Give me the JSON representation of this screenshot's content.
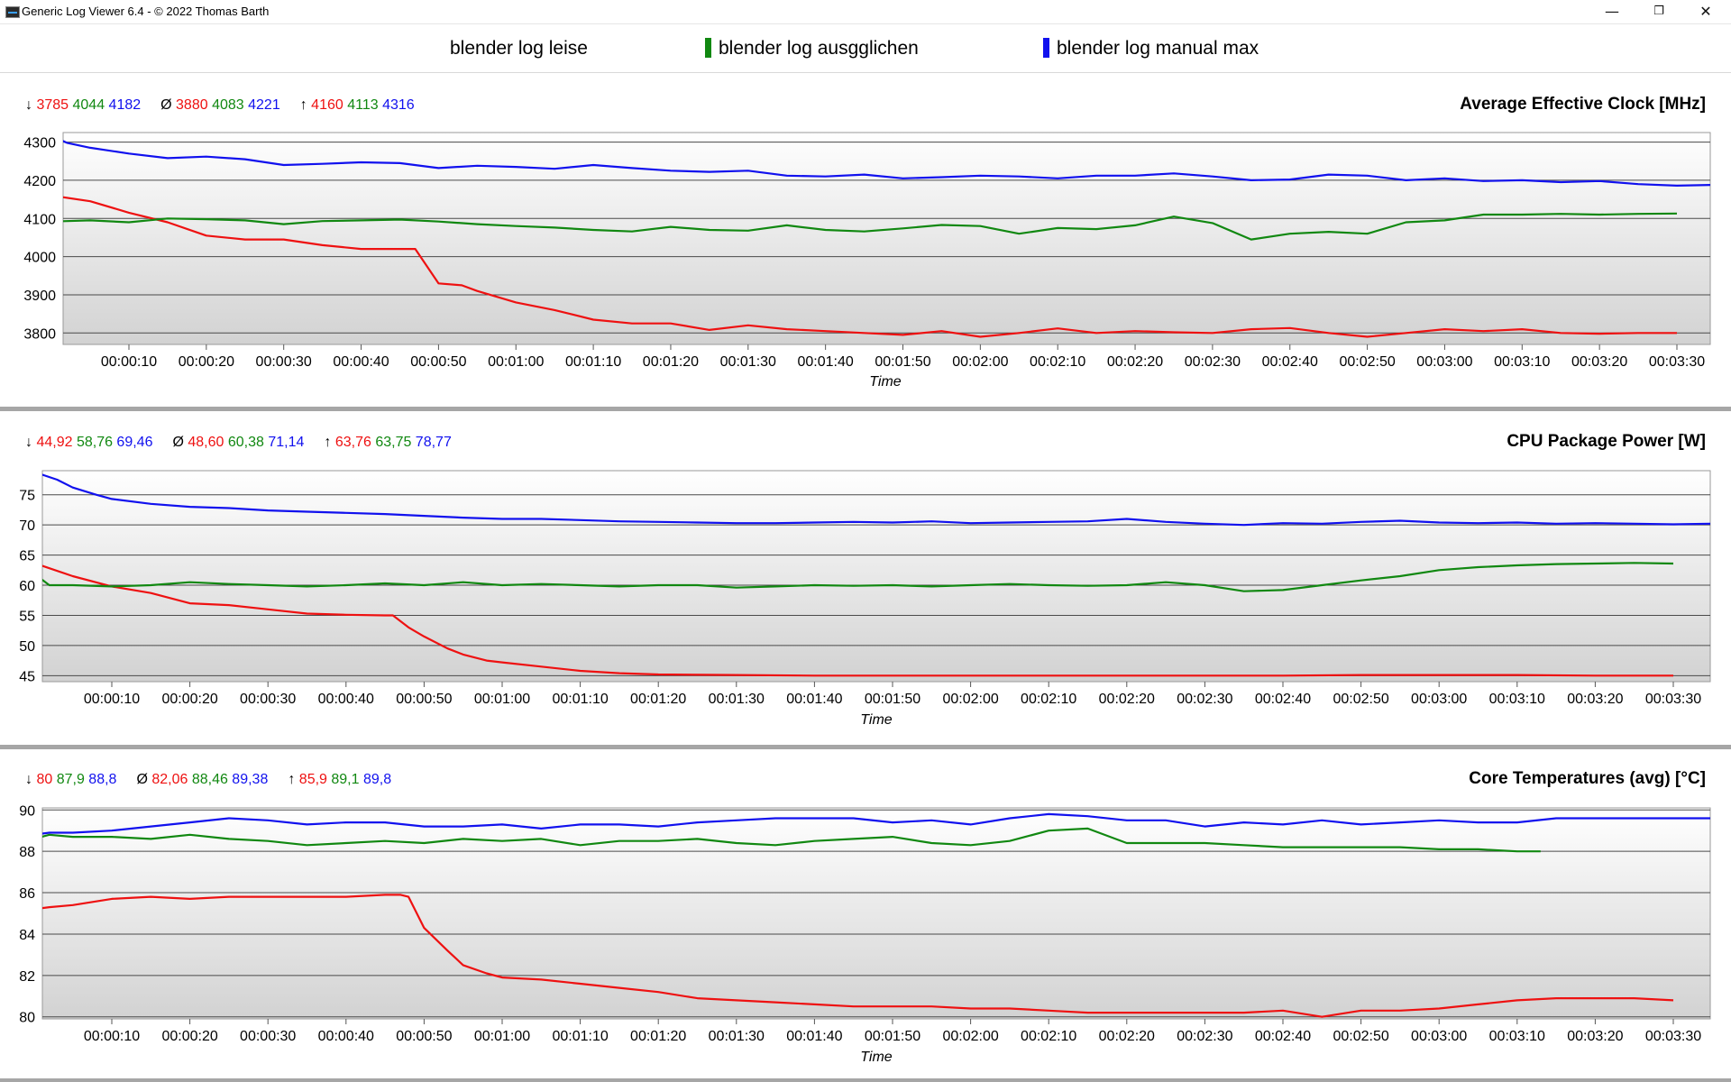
{
  "window": {
    "title": "Generic Log Viewer 6.4 - © 2022 Thomas Barth",
    "minimize_glyph": "—",
    "maximize_glyph": "❐",
    "close_glyph": "✕"
  },
  "legend": [
    {
      "label": "blender log leise",
      "color": "#ee1111",
      "swatch": false
    },
    {
      "label": "blender log ausgglichen",
      "color": "#118811",
      "swatch": true
    },
    {
      "label": "blender log manual max",
      "color": "#1111ee",
      "swatch": true
    }
  ],
  "colors": {
    "red": "#ee1111",
    "green": "#118811",
    "blue": "#1111ee",
    "grid": "#4a4a4a"
  },
  "chart_data": [
    {
      "type": "line",
      "title": "Average Effective Clock [MHz]",
      "xlabel": "Time",
      "ylim": [
        3770,
        4325
      ],
      "yticks": [
        3800,
        3900,
        4000,
        4100,
        4200,
        4300
      ],
      "xlim": [
        0,
        215
      ],
      "xticks": [
        "00:00:10",
        "00:00:20",
        "00:00:30",
        "00:00:40",
        "00:00:50",
        "00:01:00",
        "00:01:10",
        "00:01:20",
        "00:01:30",
        "00:01:40",
        "00:01:50",
        "00:02:00",
        "00:02:10",
        "00:02:20",
        "00:02:30",
        "00:02:40",
        "00:02:50",
        "00:03:00",
        "00:03:10",
        "00:03:20",
        "00:03:30"
      ],
      "stats": {
        "min": {
          "symbol": "↓",
          "values": [
            "3785",
            "4044",
            "4182"
          ]
        },
        "avg": {
          "symbol": "Ø",
          "values": [
            "3880",
            "4083",
            "4221"
          ]
        },
        "max": {
          "symbol": "↑",
          "values": [
            "4160",
            "4113",
            "4316"
          ]
        }
      },
      "series": [
        {
          "color": "red",
          "x": [
            0,
            5,
            10,
            15,
            20,
            25,
            30,
            35,
            40,
            45,
            47,
            50,
            53,
            55,
            60,
            65,
            70,
            75,
            80,
            85,
            90,
            95,
            100,
            105,
            110,
            115,
            120,
            125,
            130,
            135,
            140,
            145,
            150,
            155,
            160,
            165,
            170,
            175,
            180,
            185,
            190,
            195,
            200,
            205,
            210
          ],
          "values": [
            4160,
            4145,
            4115,
            4090,
            4055,
            4045,
            4045,
            4030,
            4020,
            4020,
            4020,
            3930,
            3925,
            3910,
            3880,
            3860,
            3835,
            3825,
            3825,
            3808,
            3820,
            3810,
            3805,
            3800,
            3795,
            3805,
            3790,
            3800,
            3812,
            3800,
            3805,
            3802,
            3800,
            3810,
            3813,
            3800,
            3790,
            3800,
            3810,
            3805,
            3810,
            3800,
            3798,
            3800,
            3800
          ]
        },
        {
          "color": "green",
          "x": [
            0,
            5,
            10,
            15,
            20,
            25,
            30,
            35,
            40,
            45,
            50,
            55,
            60,
            65,
            70,
            75,
            80,
            85,
            90,
            95,
            100,
            105,
            110,
            115,
            120,
            125,
            130,
            135,
            140,
            145,
            150,
            155,
            160,
            165,
            170,
            175,
            180,
            185,
            190,
            195,
            200,
            205,
            210
          ],
          "values": [
            4092,
            4095,
            4090,
            4100,
            4098,
            4095,
            4085,
            4093,
            4095,
            4097,
            4092,
            4085,
            4080,
            4076,
            4070,
            4066,
            4078,
            4070,
            4068,
            4082,
            4070,
            4066,
            4074,
            4083,
            4080,
            4060,
            4075,
            4072,
            4082,
            4105,
            4088,
            4045,
            4060,
            4065,
            4060,
            4090,
            4095,
            4110,
            4110,
            4112,
            4110,
            4112,
            4113
          ]
        },
        {
          "color": "blue",
          "x": [
            0,
            2,
            5,
            10,
            15,
            20,
            25,
            30,
            35,
            40,
            45,
            50,
            55,
            60,
            65,
            70,
            75,
            80,
            85,
            90,
            95,
            100,
            105,
            110,
            115,
            120,
            125,
            130,
            135,
            140,
            145,
            150,
            155,
            160,
            165,
            170,
            175,
            180,
            185,
            190,
            195,
            200,
            205,
            210,
            215
          ],
          "values": [
            4316,
            4298,
            4285,
            4270,
            4258,
            4262,
            4255,
            4240,
            4243,
            4247,
            4245,
            4232,
            4238,
            4235,
            4230,
            4240,
            4232,
            4225,
            4222,
            4225,
            4212,
            4210,
            4215,
            4205,
            4208,
            4212,
            4210,
            4205,
            4212,
            4212,
            4218,
            4210,
            4200,
            4202,
            4215,
            4212,
            4200,
            4205,
            4198,
            4200,
            4195,
            4198,
            4190,
            4186,
            4188
          ]
        }
      ]
    },
    {
      "type": "line",
      "title": "CPU Package Power [W]",
      "xlabel": "Time",
      "ylim": [
        44,
        79
      ],
      "yticks": [
        45,
        50,
        55,
        60,
        65,
        70,
        75
      ],
      "xlim": [
        0,
        215
      ],
      "xticks": [
        "00:00:10",
        "00:00:20",
        "00:00:30",
        "00:00:40",
        "00:00:50",
        "00:01:00",
        "00:01:10",
        "00:01:20",
        "00:01:30",
        "00:01:40",
        "00:01:50",
        "00:02:00",
        "00:02:10",
        "00:02:20",
        "00:02:30",
        "00:02:40",
        "00:02:50",
        "00:03:00",
        "00:03:10",
        "00:03:20",
        "00:03:30"
      ],
      "stats": {
        "min": {
          "symbol": "↓",
          "values": [
            "44,92",
            "58,76",
            "69,46"
          ]
        },
        "avg": {
          "symbol": "Ø",
          "values": [
            "48,60",
            "60,38",
            "71,14"
          ]
        },
        "max": {
          "symbol": "↑",
          "values": [
            "63,76",
            "63,75",
            "78,77"
          ]
        }
      },
      "series": [
        {
          "color": "red",
          "x": [
            0,
            5,
            10,
            15,
            20,
            25,
            30,
            35,
            40,
            45,
            46,
            48,
            50,
            53,
            55,
            58,
            60,
            65,
            70,
            75,
            80,
            90,
            100,
            110,
            120,
            130,
            140,
            150,
            160,
            170,
            180,
            190,
            200,
            210
          ],
          "values": [
            63.7,
            61.5,
            59.8,
            58.7,
            57,
            56.7,
            56,
            55.3,
            55.1,
            55,
            55,
            53,
            51.5,
            49.5,
            48.5,
            47.5,
            47.2,
            46.5,
            45.8,
            45.4,
            45.2,
            45.1,
            45,
            45,
            45,
            45,
            45,
            45,
            45,
            45.1,
            45.1,
            45.1,
            45,
            45
          ]
        },
        {
          "color": "green",
          "x": [
            0,
            2,
            5,
            10,
            15,
            20,
            25,
            30,
            35,
            40,
            45,
            50,
            55,
            60,
            65,
            70,
            75,
            80,
            85,
            90,
            95,
            100,
            105,
            110,
            115,
            120,
            125,
            130,
            135,
            140,
            145,
            150,
            155,
            160,
            165,
            170,
            175,
            180,
            185,
            190,
            195,
            200,
            205,
            210
          ],
          "values": [
            62,
            60,
            60,
            59.8,
            60,
            60.5,
            60.2,
            60,
            59.8,
            60,
            60.3,
            60,
            60.5,
            60,
            60.2,
            60,
            59.8,
            60,
            60,
            59.6,
            59.8,
            60,
            59.9,
            60,
            59.8,
            60,
            60.2,
            60,
            59.9,
            60,
            60.5,
            60,
            59,
            59.2,
            60,
            60.8,
            61.5,
            62.5,
            63,
            63.3,
            63.5,
            63.6,
            63.7,
            63.6
          ]
        },
        {
          "color": "blue",
          "x": [
            0,
            3,
            5,
            8,
            10,
            15,
            20,
            25,
            30,
            35,
            40,
            45,
            50,
            55,
            60,
            65,
            70,
            75,
            80,
            85,
            90,
            95,
            100,
            105,
            110,
            115,
            120,
            125,
            130,
            135,
            140,
            145,
            150,
            155,
            160,
            165,
            170,
            175,
            180,
            185,
            190,
            195,
            200,
            205,
            210,
            215
          ],
          "values": [
            78.8,
            77.5,
            76.2,
            75,
            74.3,
            73.5,
            73,
            72.8,
            72.4,
            72.2,
            72,
            71.8,
            71.5,
            71.2,
            71,
            71,
            70.8,
            70.6,
            70.5,
            70.4,
            70.3,
            70.3,
            70.4,
            70.5,
            70.4,
            70.6,
            70.3,
            70.4,
            70.5,
            70.6,
            71,
            70.5,
            70.2,
            70,
            70.3,
            70.2,
            70.5,
            70.7,
            70.4,
            70.3,
            70.4,
            70.2,
            70.3,
            70.2,
            70.1,
            70.2
          ]
        }
      ]
    },
    {
      "type": "line",
      "title": "Core Temperatures (avg) [°C]",
      "xlabel": "Time",
      "ylim": [
        79.9,
        90.1
      ],
      "yticks": [
        80,
        82,
        84,
        86,
        88,
        90
      ],
      "xlim": [
        0,
        215
      ],
      "xticks": [
        "00:00:10",
        "00:00:20",
        "00:00:30",
        "00:00:40",
        "00:00:50",
        "00:01:00",
        "00:01:10",
        "00:01:20",
        "00:01:30",
        "00:01:40",
        "00:01:50",
        "00:02:00",
        "00:02:10",
        "00:02:20",
        "00:02:30",
        "00:02:40",
        "00:02:50",
        "00:03:00",
        "00:03:10",
        "00:03:20",
        "00:03:30"
      ],
      "stats": {
        "min": {
          "symbol": "↓",
          "values": [
            "80",
            "87,9",
            "88,8"
          ]
        },
        "avg": {
          "symbol": "Ø",
          "values": [
            "82,06",
            "88,46",
            "89,38"
          ]
        },
        "max": {
          "symbol": "↑",
          "values": [
            "85,9",
            "89,1",
            "89,8"
          ]
        }
      },
      "series": [
        {
          "color": "red",
          "x": [
            0,
            2,
            5,
            10,
            15,
            20,
            25,
            30,
            35,
            40,
            45,
            47,
            48,
            50,
            53,
            55,
            58,
            60,
            65,
            70,
            75,
            80,
            85,
            90,
            95,
            100,
            105,
            110,
            115,
            120,
            125,
            130,
            135,
            140,
            145,
            150,
            155,
            160,
            165,
            170,
            175,
            180,
            185,
            190,
            195,
            200,
            205,
            210
          ],
          "values": [
            85.2,
            85.3,
            85.4,
            85.7,
            85.8,
            85.7,
            85.8,
            85.8,
            85.8,
            85.8,
            85.9,
            85.9,
            85.8,
            84.3,
            83.2,
            82.5,
            82.1,
            81.9,
            81.8,
            81.6,
            81.4,
            81.2,
            80.9,
            80.8,
            80.7,
            80.6,
            80.5,
            80.5,
            80.5,
            80.4,
            80.4,
            80.3,
            80.2,
            80.2,
            80.2,
            80.2,
            80.2,
            80.3,
            80.0,
            80.3,
            80.3,
            80.4,
            80.6,
            80.8,
            80.9,
            80.9,
            80.9,
            80.8
          ]
        },
        {
          "color": "green",
          "x": [
            0,
            2,
            5,
            10,
            15,
            20,
            25,
            30,
            35,
            40,
            45,
            50,
            55,
            60,
            65,
            70,
            75,
            80,
            85,
            90,
            95,
            100,
            105,
            110,
            115,
            120,
            125,
            130,
            135,
            140,
            145,
            150,
            155,
            160,
            165,
            170,
            175,
            180,
            185,
            190,
            193
          ],
          "values": [
            88.6,
            88.8,
            88.7,
            88.7,
            88.6,
            88.8,
            88.6,
            88.5,
            88.3,
            88.4,
            88.5,
            88.4,
            88.6,
            88.5,
            88.6,
            88.3,
            88.5,
            88.5,
            88.6,
            88.4,
            88.3,
            88.5,
            88.6,
            88.7,
            88.4,
            88.3,
            88.5,
            89.0,
            89.1,
            88.4,
            88.4,
            88.4,
            88.3,
            88.2,
            88.2,
            88.2,
            88.2,
            88.1,
            88.1,
            88.0,
            88.0
          ]
        },
        {
          "color": "blue",
          "x": [
            0,
            2,
            5,
            10,
            15,
            20,
            25,
            30,
            35,
            40,
            45,
            50,
            55,
            60,
            65,
            70,
            75,
            80,
            85,
            90,
            95,
            100,
            105,
            110,
            115,
            120,
            125,
            130,
            135,
            140,
            145,
            150,
            155,
            160,
            165,
            170,
            175,
            180,
            185,
            190,
            195,
            200,
            205,
            210,
            215
          ],
          "values": [
            88.8,
            88.9,
            88.9,
            89.0,
            89.2,
            89.4,
            89.6,
            89.5,
            89.3,
            89.4,
            89.4,
            89.2,
            89.2,
            89.3,
            89.1,
            89.3,
            89.3,
            89.2,
            89.4,
            89.5,
            89.6,
            89.6,
            89.6,
            89.4,
            89.5,
            89.3,
            89.6,
            89.8,
            89.7,
            89.5,
            89.5,
            89.2,
            89.4,
            89.3,
            89.5,
            89.3,
            89.4,
            89.5,
            89.4,
            89.4,
            89.6,
            89.6,
            89.6,
            89.6,
            89.6
          ]
        }
      ]
    }
  ]
}
